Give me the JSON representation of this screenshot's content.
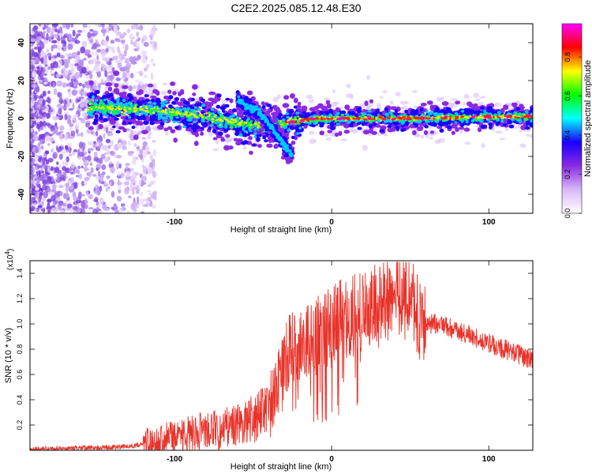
{
  "title": "C2E2.2025.085.12.48.E30",
  "chart_data": [
    {
      "type": "heatmap",
      "xlabel": "Height of straight line (km)",
      "ylabel": "Frequency (Hz)",
      "xlim": [
        -192,
        128
      ],
      "ylim": [
        -50,
        50
      ],
      "xticks": [
        -100,
        0,
        100
      ],
      "yticks": [
        -40,
        -20,
        0,
        20,
        40
      ],
      "colorbar": {
        "label": "Normalized spectral amplitude",
        "range": [
          0,
          0.97
        ],
        "ticks": [
          "0.0",
          "0.2",
          "0.4",
          "0.6",
          "0.8"
        ],
        "colors": [
          "#ffffff",
          "#d8b8f8",
          "#8a2be2",
          "#1a00ff",
          "#00ffff",
          "#00ff00",
          "#ffff00",
          "#ff0000",
          "#ff00ff"
        ]
      },
      "features": {
        "main_track": [
          [
            -150,
            6
          ],
          [
            -120,
            5
          ],
          [
            -100,
            3
          ],
          [
            -80,
            1
          ],
          [
            -60,
            -2
          ],
          [
            -40,
            -4
          ],
          [
            -25,
            -2
          ],
          [
            -10,
            0
          ],
          [
            0,
            0
          ],
          [
            50,
            0
          ],
          [
            100,
            1
          ],
          [
            128,
            1
          ]
        ],
        "secondary_branch": [
          [
            -60,
            10
          ],
          [
            -45,
            2
          ],
          [
            -35,
            -8
          ],
          [
            -25,
            -20
          ]
        ],
        "scatter_region_x": [
          -192,
          -120
        ]
      }
    },
    {
      "type": "line",
      "xlabel": "Height of straight line (km)",
      "ylabel": "SNR (10 * v/v)",
      "multiplier": "(x10^4)",
      "multiplier_base": "(x10",
      "multiplier_exp": "4",
      "xlim": [
        -192,
        128
      ],
      "ylim": [
        0,
        1.5
      ],
      "xticks": [
        -100,
        0,
        100
      ],
      "yticks": [
        "0.2",
        "0.4",
        "0.6",
        "0.8",
        "1.0",
        "1.2",
        "1.4"
      ],
      "color": "#e8332a",
      "series": [
        {
          "x": [
            -192,
            -170,
            -150,
            -130,
            -120,
            -110,
            -100,
            -90,
            -80,
            -70,
            -60,
            -50,
            -40,
            -35,
            -30,
            -25,
            -20,
            -15,
            -10,
            -5,
            0,
            10,
            20,
            30,
            40,
            50,
            55,
            60,
            70,
            80,
            90,
            100,
            110,
            120,
            128
          ],
          "y": [
            0.01,
            0.015,
            0.02,
            0.03,
            0.05,
            0.08,
            0.1,
            0.13,
            0.15,
            0.17,
            0.2,
            0.25,
            0.35,
            0.5,
            0.7,
            0.85,
            0.8,
            0.85,
            0.9,
            0.95,
            1.0,
            1.05,
            1.1,
            1.15,
            1.25,
            1.2,
            1.05,
            1.0,
            1.0,
            0.95,
            0.9,
            0.85,
            0.8,
            0.75,
            0.72
          ]
        }
      ]
    }
  ]
}
